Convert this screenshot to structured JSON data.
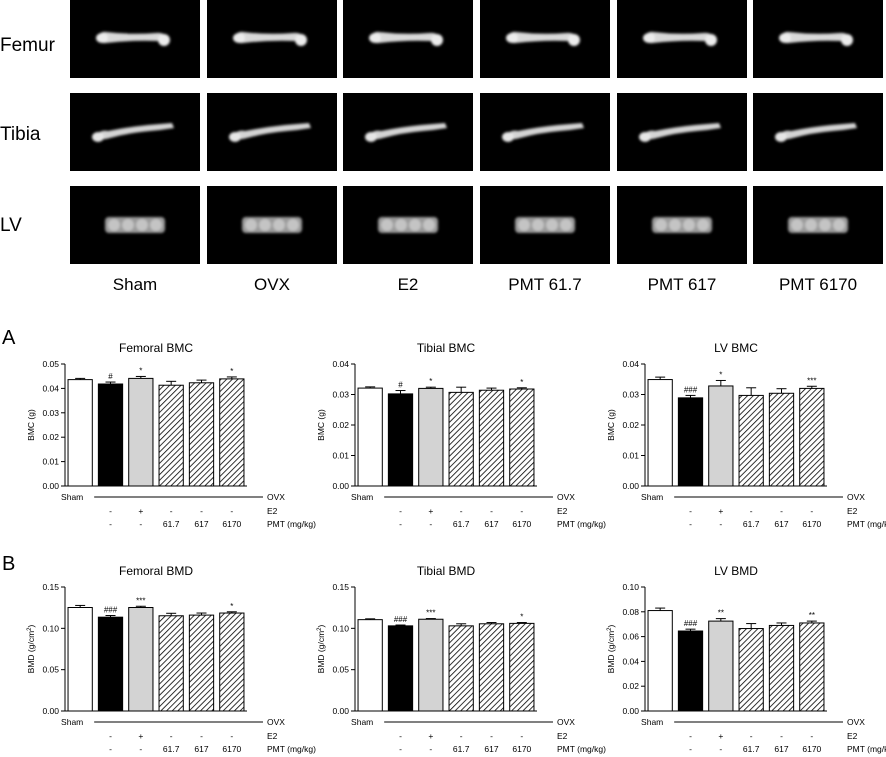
{
  "images": {
    "row_labels": [
      "Femur",
      "Tibia",
      "LV"
    ],
    "col_labels": [
      "Sham",
      "OVX",
      "E2",
      "PMT 61.7",
      "PMT 617",
      "PMT 6170"
    ]
  },
  "section_labels": [
    "A",
    "B"
  ],
  "colors": {
    "open": "#ffffff",
    "solid": "#000000",
    "light_gray": "#d3d3d3",
    "hatched": "diagonal-hatch",
    "panel_bg": "#000000",
    "bone": "#d9d9d9"
  },
  "chart_data": [
    {
      "type": "bar",
      "title": "Femoral BMC",
      "ylabel": "BMC (g)",
      "ylim": [
        0,
        0.05
      ],
      "yticks": [
        "0.00",
        "0.01",
        "0.02",
        "0.03",
        "0.04",
        "0.05"
      ],
      "categories": [
        "Sham",
        "OVX",
        "E2",
        "PMT 61.7",
        "PMT 617",
        "PMT 6170"
      ],
      "values": [
        0.0436,
        0.0418,
        0.0441,
        0.0413,
        0.0423,
        0.0439
      ],
      "errors": [
        0.0005,
        0.0008,
        0.0008,
        0.0016,
        0.0011,
        0.0008
      ],
      "marks": [
        "",
        "#",
        "*",
        "",
        "",
        "*"
      ],
      "fills": [
        "open",
        "solid",
        "light_gray",
        "hatched",
        "hatched",
        "hatched"
      ],
      "table": {
        "row1": [
          "Sham",
          "",
          "",
          "",
          "",
          "",
          "OVX"
        ],
        "row2": [
          "",
          "-",
          "+",
          "-",
          "-",
          "-",
          "E2"
        ],
        "row3": [
          "",
          "-",
          "-",
          "61.7",
          "617",
          "6170",
          "PMT (mg/kg)"
        ]
      }
    },
    {
      "type": "bar",
      "title": "Tibial BMC",
      "ylabel": "BMC (g)",
      "ylim": [
        0,
        0.04
      ],
      "yticks": [
        "0.00",
        "0.01",
        "0.02",
        "0.03",
        "0.04"
      ],
      "categories": [
        "Sham",
        "OVX",
        "E2",
        "PMT 61.7",
        "PMT 617",
        "PMT 6170"
      ],
      "values": [
        0.0321,
        0.0302,
        0.032,
        0.0307,
        0.0314,
        0.0318
      ],
      "errors": [
        0.0004,
        0.0011,
        0.0004,
        0.0017,
        0.0007,
        0.0004
      ],
      "marks": [
        "",
        "#",
        "*",
        "",
        "",
        "*"
      ],
      "fills": [
        "open",
        "solid",
        "light_gray",
        "hatched",
        "hatched",
        "hatched"
      ],
      "table": {
        "row1": [
          "Sham",
          "",
          "",
          "",
          "",
          "",
          "OVX"
        ],
        "row2": [
          "",
          "-",
          "+",
          "-",
          "-",
          "-",
          "E2"
        ],
        "row3": [
          "",
          "-",
          "-",
          "61.7",
          "617",
          "6170",
          "PMT (mg/kg)"
        ]
      }
    },
    {
      "type": "bar",
      "title": "LV BMC",
      "ylabel": "BMC (g)",
      "ylim": [
        0,
        0.04
      ],
      "yticks": [
        "0.00",
        "0.01",
        "0.02",
        "0.03",
        "0.04"
      ],
      "categories": [
        "Sham",
        "OVX",
        "E2",
        "PMT 61.7",
        "PMT 617",
        "PMT 6170"
      ],
      "values": [
        0.0349,
        0.0289,
        0.0328,
        0.0297,
        0.0304,
        0.032
      ],
      "errors": [
        0.0008,
        0.0008,
        0.0018,
        0.0025,
        0.0015,
        0.0007
      ],
      "marks": [
        "",
        "###",
        "*",
        "",
        "",
        "***"
      ],
      "fills": [
        "open",
        "solid",
        "light_gray",
        "hatched",
        "hatched",
        "hatched"
      ],
      "table": {
        "row1": [
          "Sham",
          "",
          "",
          "",
          "",
          "",
          "OVX"
        ],
        "row2": [
          "",
          "-",
          "+",
          "-",
          "-",
          "-",
          "E2"
        ],
        "row3": [
          "",
          "-",
          "-",
          "61.7",
          "617",
          "6170",
          "PMT (mg/kg)"
        ]
      }
    },
    {
      "type": "bar",
      "title": "Femoral BMD",
      "ylabel": "BMD (g/cm",
      "ylabel_sup": "2",
      "ylabel_end": ")",
      "ylim": [
        0,
        0.15
      ],
      "yticks": [
        "0.00",
        "0.05",
        "0.10",
        "0.15"
      ],
      "categories": [
        "Sham",
        "OVX",
        "E2",
        "PMT 61.7",
        "PMT 617",
        "PMT 6170"
      ],
      "values": [
        0.1252,
        0.1135,
        0.1252,
        0.1152,
        0.116,
        0.1185
      ],
      "errors": [
        0.0025,
        0.002,
        0.0015,
        0.003,
        0.0025,
        0.0015
      ],
      "marks": [
        "",
        "###",
        "***",
        "",
        "",
        "*"
      ],
      "fills": [
        "open",
        "solid",
        "light_gray",
        "hatched",
        "hatched",
        "hatched"
      ],
      "table": {
        "row1": [
          "Sham",
          "",
          "",
          "",
          "",
          "",
          "OVX"
        ],
        "row2": [
          "",
          "-",
          "+",
          "-",
          "-",
          "-",
          "E2"
        ],
        "row3": [
          "",
          "-",
          "-",
          "61.7",
          "617",
          "6170",
          "PMT (mg/kg)"
        ]
      }
    },
    {
      "type": "bar",
      "title": "Tibial BMD",
      "ylabel": "BMD (g/cm",
      "ylabel_sup": "2",
      "ylabel_end": ")",
      "ylim": [
        0,
        0.15
      ],
      "yticks": [
        "0.00",
        "0.05",
        "0.10",
        "0.15"
      ],
      "categories": [
        "Sham",
        "OVX",
        "E2",
        "PMT 61.7",
        "PMT 617",
        "PMT 6170"
      ],
      "values": [
        0.1105,
        0.103,
        0.111,
        0.103,
        0.1055,
        0.106
      ],
      "errors": [
        0.001,
        0.001,
        0.0008,
        0.0025,
        0.0015,
        0.001
      ],
      "marks": [
        "",
        "###",
        "***",
        "",
        "",
        "*"
      ],
      "fills": [
        "open",
        "solid",
        "light_gray",
        "hatched",
        "hatched",
        "hatched"
      ],
      "table": {
        "row1": [
          "Sham",
          "",
          "",
          "",
          "",
          "",
          "OVX"
        ],
        "row2": [
          "",
          "-",
          "+",
          "-",
          "-",
          "-",
          "E2"
        ],
        "row3": [
          "",
          "-",
          "-",
          "61.7",
          "617",
          "6170",
          "PMT (mg/kg)"
        ]
      }
    },
    {
      "type": "bar",
      "title": "LV BMD",
      "ylabel": "BMD (g/cm",
      "ylabel_sup": "2",
      "ylabel_end": ")",
      "ylim": [
        0,
        0.1
      ],
      "yticks": [
        "0.00",
        "0.02",
        "0.04",
        "0.06",
        "0.08",
        "0.10"
      ],
      "categories": [
        "Sham",
        "OVX",
        "E2",
        "PMT 61.7",
        "PMT 617",
        "PMT 6170"
      ],
      "values": [
        0.081,
        0.0645,
        0.0725,
        0.0665,
        0.069,
        0.071
      ],
      "errors": [
        0.002,
        0.0015,
        0.002,
        0.004,
        0.002,
        0.0015
      ],
      "marks": [
        "",
        "###",
        "**",
        "",
        "",
        "**"
      ],
      "fills": [
        "open",
        "solid",
        "light_gray",
        "hatched",
        "hatched",
        "hatched"
      ],
      "table": {
        "row1": [
          "Sham",
          "",
          "",
          "",
          "",
          "",
          "OVX"
        ],
        "row2": [
          "",
          "-",
          "+",
          "-",
          "-",
          "-",
          "E2"
        ],
        "row3": [
          "",
          "-",
          "-",
          "61.7",
          "617",
          "6170",
          "PMT (mg/kg)"
        ]
      }
    }
  ]
}
